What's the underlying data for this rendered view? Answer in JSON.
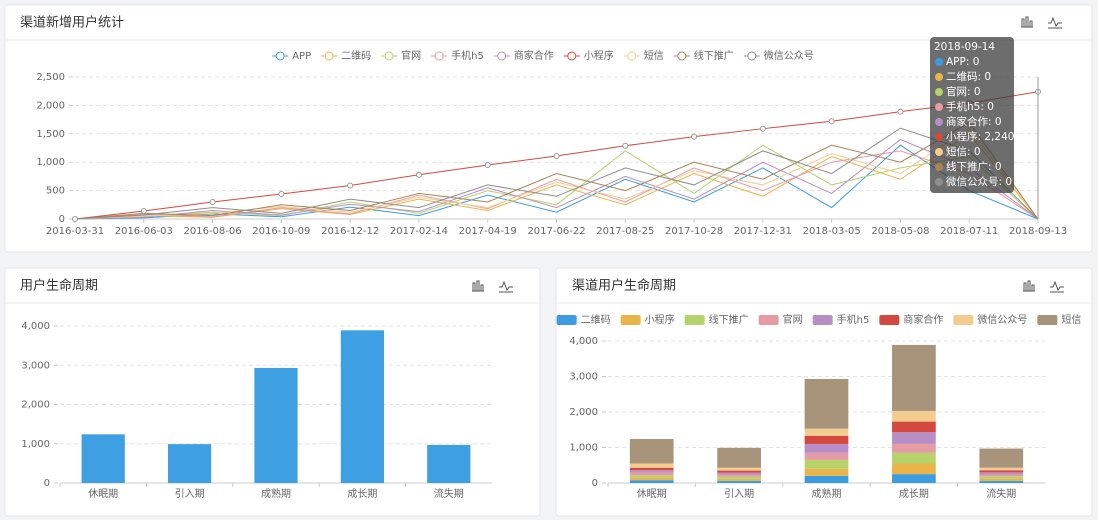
{
  "chart_data": [
    {
      "type": "line",
      "title": "渠道新增用户统计",
      "x": [
        "2016-03-31",
        "2016-06-03",
        "2016-08-06",
        "2016-10-09",
        "2016-12-12",
        "2017-02-14",
        "2017-04-19",
        "2017-06-22",
        "2017-08-25",
        "2017-10-28",
        "2017-12-31",
        "2018-03-05",
        "2018-05-08",
        "2018-07-11",
        "2018-09-13"
      ],
      "series": [
        {
          "name": "APP",
          "color": "#3d9be0",
          "values": [
            0,
            20,
            90,
            40,
            210,
            60,
            420,
            120,
            700,
            300,
            900,
            200,
            1300,
            500,
            0
          ]
        },
        {
          "name": "二维码",
          "color": "#e9b54a",
          "values": [
            0,
            60,
            30,
            180,
            80,
            350,
            150,
            600,
            250,
            800,
            400,
            1100,
            700,
            1500,
            0
          ]
        },
        {
          "name": "官网",
          "color": "#b5d26b",
          "values": [
            0,
            40,
            120,
            60,
            300,
            100,
            500,
            250,
            1200,
            450,
            1300,
            600,
            900,
            1100,
            0
          ]
        },
        {
          "name": "手机h5",
          "color": "#ea9aa3",
          "values": [
            0,
            80,
            40,
            200,
            90,
            420,
            180,
            700,
            300,
            900,
            500,
            1000,
            1200,
            800,
            0
          ]
        },
        {
          "name": "商家合作",
          "color": "#b88ec6",
          "values": [
            0,
            30,
            150,
            70,
            260,
            130,
            550,
            200,
            750,
            350,
            1000,
            450,
            1400,
            900,
            0
          ]
        },
        {
          "name": "小程序",
          "color": "#d4493f",
          "values": [
            0,
            140,
            300,
            440,
            590,
            780,
            950,
            1110,
            1290,
            1450,
            1590,
            1720,
            1890,
            2040,
            2240
          ]
        },
        {
          "name": "短信",
          "color": "#f2cd8f",
          "values": [
            0,
            50,
            100,
            220,
            120,
            380,
            200,
            650,
            350,
            850,
            600,
            1150,
            800,
            1600,
            0
          ]
        },
        {
          "name": "线下推广",
          "color": "#a88555",
          "values": [
            0,
            100,
            60,
            250,
            150,
            450,
            300,
            800,
            500,
            1000,
            700,
            1300,
            1000,
            1700,
            0
          ]
        },
        {
          "name": "微信公众号",
          "color": "#8e8e8e",
          "values": [
            0,
            70,
            200,
            100,
            350,
            200,
            600,
            400,
            900,
            600,
            1200,
            800,
            1600,
            1200,
            0
          ]
        }
      ],
      "ylim": [
        0,
        2500
      ],
      "yticks": [
        0,
        500,
        {
          "value": 1000,
          "label": "1,000"
        },
        {
          "value": 1500,
          "label": "1,500"
        },
        {
          "value": 2000,
          "label": "2,000"
        },
        {
          "value": 2500,
          "label": "2,500"
        }
      ],
      "grid": true,
      "tooltip": {
        "title": "2018-09-14",
        "items": [
          "APP: 0",
          "二维码: 0",
          "官网: 0",
          "手机h5: 0",
          "商家合作: 0",
          "小程序: 2,240",
          "短信: 0",
          "线下推广: 0",
          "微信公众号: 0"
        ]
      }
    },
    {
      "type": "bar",
      "title": "用户生命周期",
      "categories": [
        "休眠期",
        "引入期",
        "成熟期",
        "成长期",
        "流失期"
      ],
      "values": [
        1240,
        990,
        2930,
        3890,
        970
      ],
      "color": "#3f9fe3",
      "ylim": [
        0,
        4000
      ],
      "yticks": [
        0,
        {
          "value": 1000,
          "label": "1,000"
        },
        {
          "value": 2000,
          "label": "2,000"
        },
        {
          "value": 3000,
          "label": "3,000"
        },
        {
          "value": 4000,
          "label": "4,000"
        }
      ],
      "grid": true
    },
    {
      "type": "bar",
      "title": "渠道用户生命周期",
      "stacked": true,
      "categories": [
        "休眠期",
        "引入期",
        "成熟期",
        "成长期",
        "流失期"
      ],
      "series": [
        {
          "name": "二维码",
          "color": "#3d9be0",
          "values": [
            80,
            60,
            200,
            250,
            60
          ]
        },
        {
          "name": "小程序",
          "color": "#e9b54a",
          "values": [
            80,
            60,
            200,
            300,
            70
          ]
        },
        {
          "name": "线下推广",
          "color": "#b5d26b",
          "values": [
            60,
            60,
            250,
            300,
            60
          ]
        },
        {
          "name": "官网",
          "color": "#e59ca4",
          "values": [
            70,
            50,
            200,
            250,
            50
          ]
        },
        {
          "name": "手机h5",
          "color": "#b88ec6",
          "values": [
            70,
            60,
            250,
            330,
            60
          ]
        },
        {
          "name": "商家合作",
          "color": "#d4493f",
          "values": [
            70,
            60,
            230,
            300,
            60
          ]
        },
        {
          "name": "微信公众号",
          "color": "#f2cd8f",
          "values": [
            120,
            80,
            200,
            300,
            70
          ]
        },
        {
          "name": "短信",
          "color": "#a8937b",
          "values": [
            690,
            560,
            1400,
            1860,
            540
          ]
        }
      ],
      "ylim": [
        0,
        4000
      ],
      "yticks": [
        0,
        {
          "value": 1000,
          "label": "1,000"
        },
        {
          "value": 2000,
          "label": "2,000"
        },
        {
          "value": 3000,
          "label": "3,000"
        },
        {
          "value": 4000,
          "label": "4,000"
        }
      ],
      "grid": true
    }
  ]
}
